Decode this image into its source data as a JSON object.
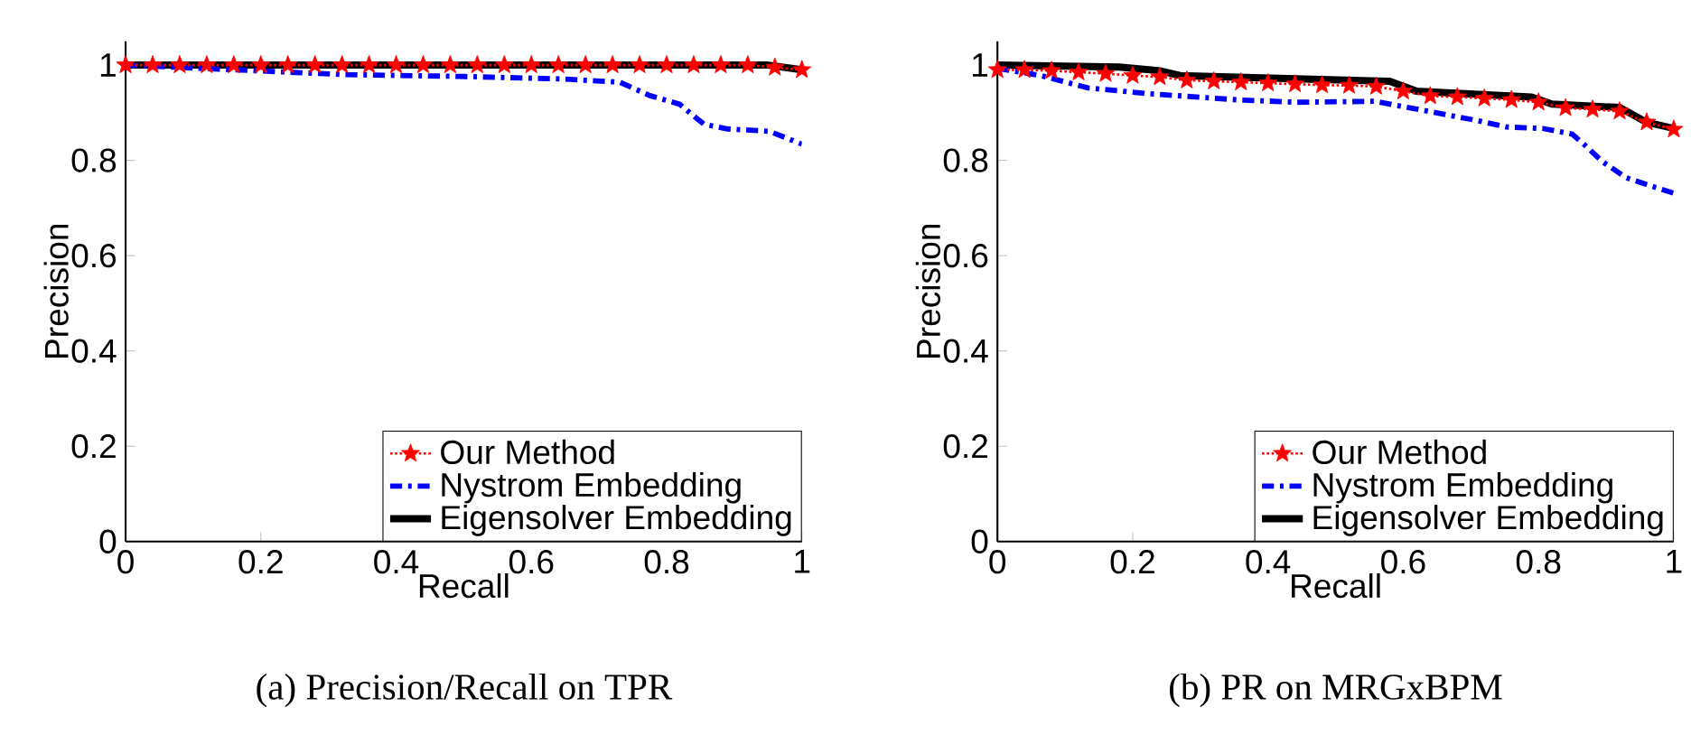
{
  "chart_data": [
    {
      "type": "line",
      "xlabel": "Recall",
      "ylabel": "Precision",
      "annotations": [
        "(a) Precision/Recall on TPR"
      ],
      "xlim": [
        0,
        1
      ],
      "ylim": [
        0,
        1.05
      ],
      "xticks": [
        0,
        0.2,
        0.4,
        0.6,
        0.8,
        1
      ],
      "yticks": [
        0,
        0.2,
        0.4,
        0.6,
        0.8,
        1
      ],
      "legend": "bottom right",
      "grid": false,
      "series": [
        {
          "name": "Our Method",
          "color": "#ff0000",
          "marker": "star",
          "line_style": "dotted",
          "x": [
            0,
            0.04,
            0.08,
            0.12,
            0.16,
            0.2,
            0.24,
            0.28,
            0.32,
            0.36,
            0.4,
            0.44,
            0.48,
            0.52,
            0.56,
            0.6,
            0.64,
            0.68,
            0.72,
            0.76,
            0.8,
            0.84,
            0.88,
            0.92,
            0.96,
            1
          ],
          "values": [
            1,
            1,
            1,
            1,
            1,
            1,
            1,
            1,
            1,
            1,
            1,
            1,
            1,
            1,
            1,
            1,
            1,
            1,
            1,
            1,
            1,
            1,
            1,
            1,
            0.995,
            0.99
          ]
        },
        {
          "name": "Nystrom Embedding",
          "color": "#0000ff",
          "marker": "none",
          "line_style": "dashed",
          "x": [
            0,
            0.194,
            0.326,
            0.502,
            0.643,
            0.731,
            0.775,
            0.819,
            0.855,
            0.89,
            0.952,
            1
          ],
          "values": [
            1,
            0.988,
            0.98,
            0.976,
            0.971,
            0.964,
            0.936,
            0.918,
            0.876,
            0.866,
            0.861,
            0.834
          ]
        },
        {
          "name": "Eigensolver Embedding",
          "color": "#000000",
          "marker": "none",
          "line_style": "solid",
          "x": [
            0,
            0.5,
            0.95,
            1
          ],
          "values": [
            1,
            1,
            1,
            0.99
          ]
        }
      ]
    },
    {
      "type": "line",
      "xlabel": "Recall",
      "ylabel": "Precision",
      "annotations": [
        "(b) PR on MRGxBPM"
      ],
      "xlim": [
        0,
        1
      ],
      "ylim": [
        0,
        1.05
      ],
      "xticks": [
        0,
        0.2,
        0.4,
        0.6,
        0.8,
        1
      ],
      "yticks": [
        0,
        0.2,
        0.4,
        0.6,
        0.8,
        1
      ],
      "legend": "bottom right",
      "grid": false,
      "series": [
        {
          "name": "Our Method",
          "color": "#ff0000",
          "marker": "star",
          "line_style": "dotted",
          "x": [
            0,
            0.04,
            0.08,
            0.12,
            0.16,
            0.2,
            0.24,
            0.28,
            0.32,
            0.36,
            0.4,
            0.44,
            0.48,
            0.52,
            0.56,
            0.6,
            0.64,
            0.68,
            0.72,
            0.76,
            0.8,
            0.84,
            0.88,
            0.92,
            0.96,
            1
          ],
          "values": [
            0.99,
            0.99,
            0.988,
            0.985,
            0.982,
            0.978,
            0.975,
            0.968,
            0.966,
            0.964,
            0.962,
            0.96,
            0.958,
            0.957,
            0.955,
            0.945,
            0.935,
            0.933,
            0.93,
            0.927,
            0.922,
            0.91,
            0.907,
            0.903,
            0.88,
            0.865
          ]
        },
        {
          "name": "Nystrom Embedding",
          "color": "#0000ff",
          "marker": "none",
          "line_style": "dashed",
          "x": [
            0,
            0.064,
            0.134,
            0.223,
            0.355,
            0.443,
            0.558,
            0.611,
            0.708,
            0.753,
            0.806,
            0.85,
            0.867,
            0.894,
            0.929,
            0.965,
            1
          ],
          "values": [
            0.993,
            0.978,
            0.952,
            0.94,
            0.927,
            0.922,
            0.924,
            0.91,
            0.884,
            0.87,
            0.867,
            0.855,
            0.834,
            0.798,
            0.764,
            0.747,
            0.731
          ]
        },
        {
          "name": "Eigensolver Embedding",
          "color": "#000000",
          "marker": "none",
          "line_style": "solid",
          "x": [
            0,
            0.18,
            0.24,
            0.27,
            0.58,
            0.62,
            0.79,
            0.82,
            0.92,
            0.96,
            1
          ],
          "values": [
            1,
            0.996,
            0.988,
            0.978,
            0.966,
            0.945,
            0.933,
            0.918,
            0.911,
            0.88,
            0.867
          ]
        }
      ]
    }
  ]
}
